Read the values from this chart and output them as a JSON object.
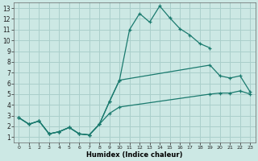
{
  "xlabel": "Humidex (Indice chaleur)",
  "bg_color": "#cce8e4",
  "grid_color": "#aacfcb",
  "line_color": "#1a7a6e",
  "xlim": [
    -0.5,
    23.5
  ],
  "ylim": [
    0.5,
    13.5
  ],
  "xticks": [
    0,
    1,
    2,
    3,
    4,
    5,
    6,
    7,
    8,
    9,
    10,
    11,
    12,
    13,
    14,
    15,
    16,
    17,
    18,
    19,
    20,
    21,
    22,
    23
  ],
  "yticks": [
    1,
    2,
    3,
    4,
    5,
    6,
    7,
    8,
    9,
    10,
    11,
    12,
    13
  ],
  "top_x": [
    0,
    1,
    2,
    3,
    4,
    5,
    6,
    7,
    8,
    9,
    10,
    11,
    12,
    13,
    14,
    15,
    16,
    17,
    18,
    19
  ],
  "top_y": [
    2.8,
    2.2,
    2.5,
    1.3,
    1.5,
    1.9,
    1.3,
    1.2,
    2.2,
    4.3,
    6.3,
    11.0,
    12.5,
    11.7,
    13.2,
    12.1,
    11.1,
    10.5,
    9.7,
    9.3
  ],
  "mid_x": [
    0,
    1,
    2,
    3,
    4,
    5,
    6,
    7,
    8,
    9,
    10,
    19,
    20,
    21,
    22,
    23
  ],
  "mid_y": [
    2.8,
    2.2,
    2.5,
    1.3,
    1.5,
    1.9,
    1.3,
    1.2,
    2.2,
    4.3,
    6.3,
    7.7,
    6.7,
    6.5,
    6.7,
    5.2
  ],
  "bot_x": [
    0,
    1,
    2,
    3,
    4,
    5,
    6,
    7,
    8,
    9,
    10,
    19,
    20,
    21,
    22,
    23
  ],
  "bot_y": [
    2.8,
    2.2,
    2.5,
    1.3,
    1.5,
    1.9,
    1.3,
    1.2,
    2.2,
    3.2,
    3.8,
    5.0,
    5.1,
    5.1,
    5.3,
    5.0
  ]
}
